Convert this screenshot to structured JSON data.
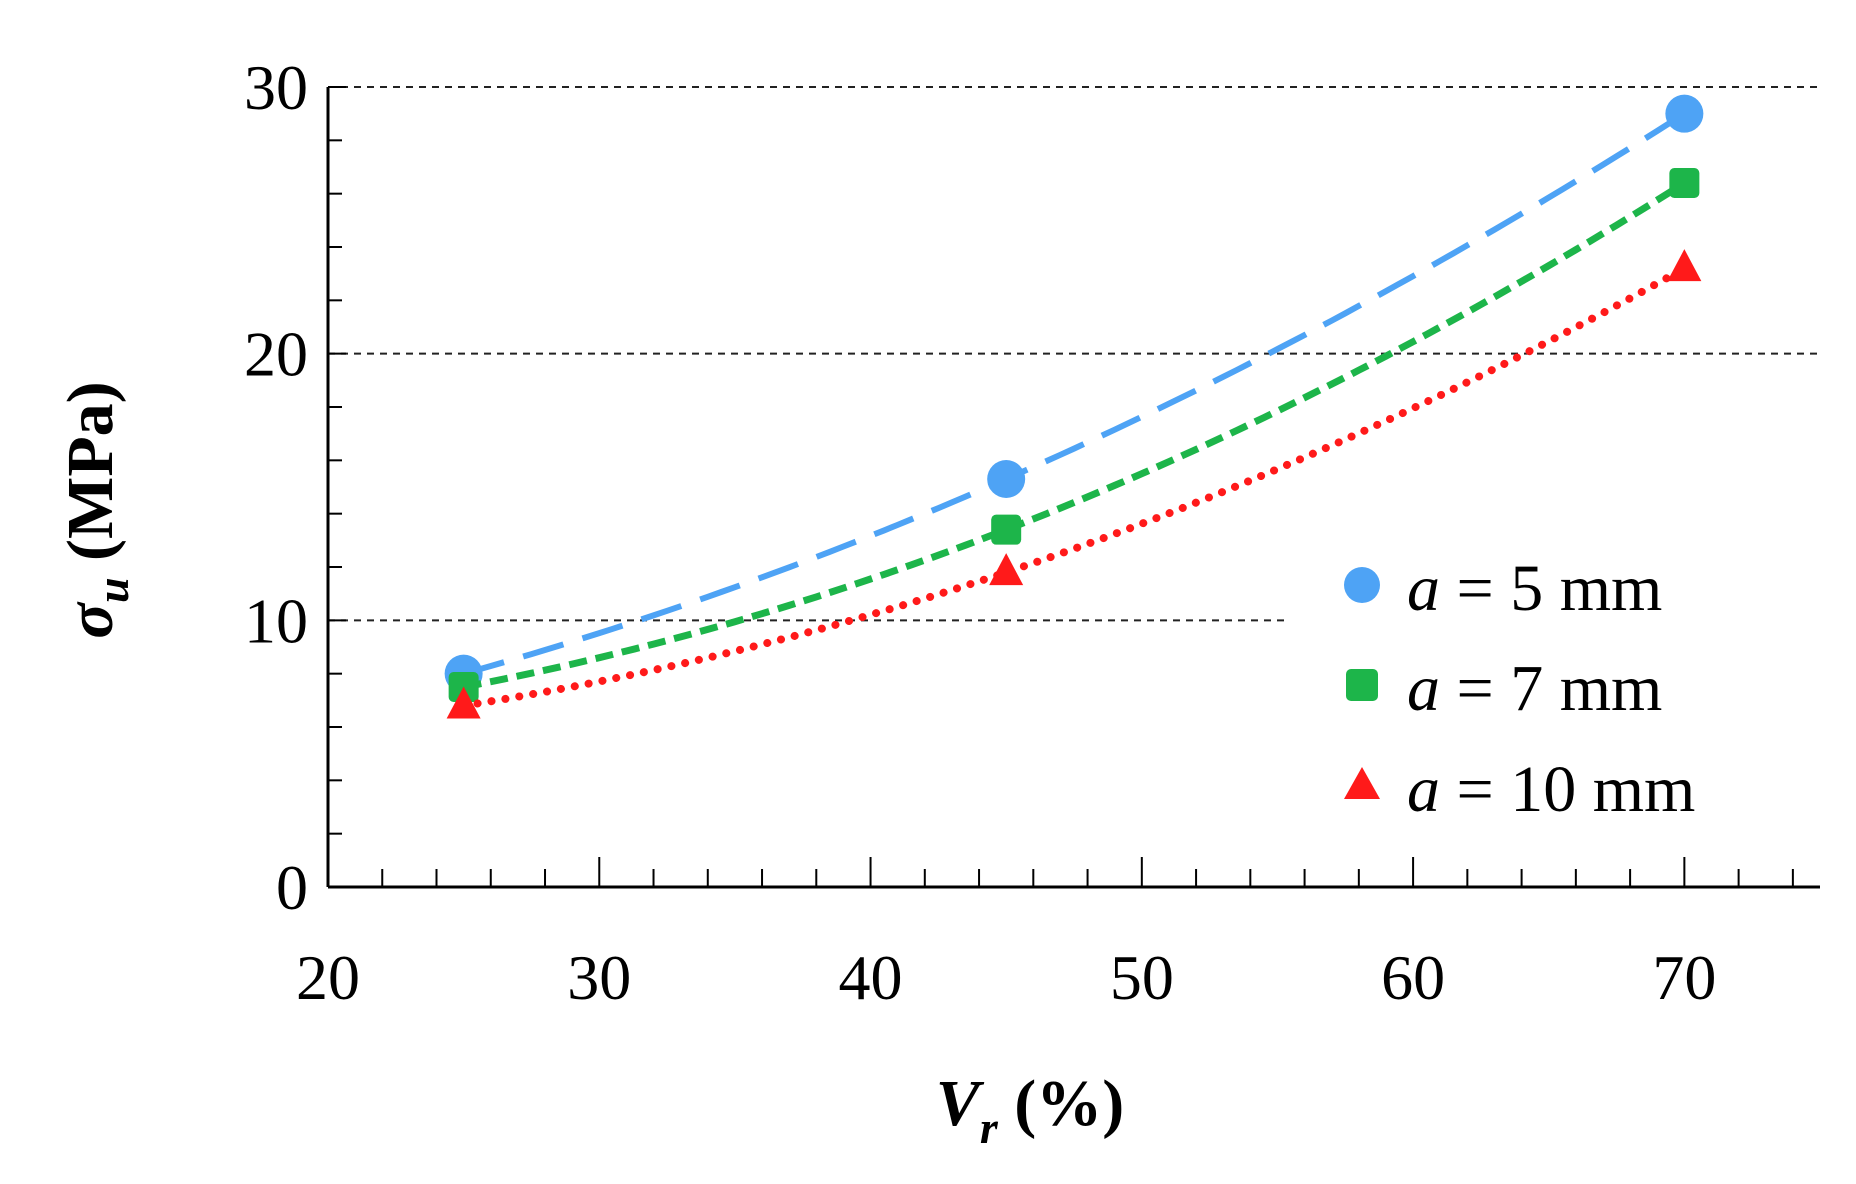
{
  "chart_data": {
    "type": "line",
    "title": "",
    "xlabel": {
      "symbol": "V",
      "subscript": "r",
      "unit": "(%)"
    },
    "ylabel": {
      "symbol": "σ",
      "subscript": "u",
      "unit": "(MPa)"
    },
    "xlim": [
      20,
      75
    ],
    "ylim": [
      0,
      30
    ],
    "xticks": [
      "20",
      "30",
      "40",
      "50",
      "60",
      "70"
    ],
    "yticks": [
      "0",
      "10",
      "20",
      "30"
    ],
    "grid": "horizontal dashed at y = 10, 20, 30",
    "legend_position": "center-right",
    "series": [
      {
        "name": "a = 5 mm",
        "legend_var": "a",
        "legend_rest": " = 5 mm",
        "color": "#4ea3f5",
        "marker": "circle",
        "line_style": "long-dash",
        "x": [
          25,
          45,
          70
        ],
        "y": [
          8.0,
          15.3,
          29.0
        ]
      },
      {
        "name": "a = 7 mm",
        "legend_var": "a",
        "legend_rest": " = 7 mm",
        "color": "#1db54a",
        "marker": "square",
        "line_style": "short-dash",
        "x": [
          25,
          45,
          70
        ],
        "y": [
          7.5,
          13.4,
          26.4
        ]
      },
      {
        "name": "a = 10 mm",
        "legend_var": "a",
        "legend_rest": " = 10 mm",
        "color": "#ff1a1a",
        "marker": "triangle",
        "line_style": "dotted",
        "x": [
          25,
          45,
          70
        ],
        "y": [
          6.8,
          11.8,
          23.2
        ]
      }
    ]
  }
}
